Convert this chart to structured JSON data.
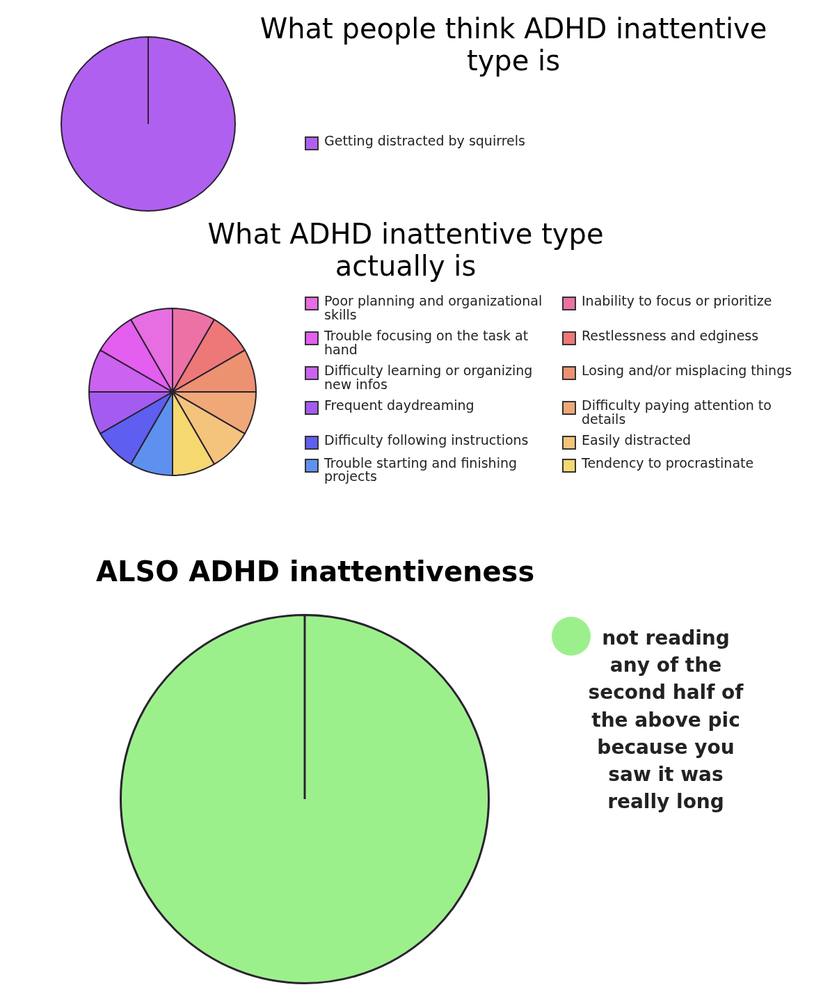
{
  "chart_data": [
    {
      "type": "pie",
      "title": "What people think ADHD inattentive type is",
      "categories": [
        "Getting distracted by squirrels"
      ],
      "values": [
        100
      ],
      "colors": [
        "#b060ee"
      ],
      "legend": "right"
    },
    {
      "type": "pie",
      "title": "What ADHD inattentive type actually is",
      "categories": [
        "Inability to focus or prioritize",
        "Restlessness and edginess",
        "Losing and/or misplacing things",
        "Difficulty paying attention to details",
        "Easily distracted",
        "Tendency to procrastinate",
        "Trouble starting and finishing projects",
        "Difficulty following instructions",
        "Frequent daydreaming",
        "Difficulty learning or organizing new infos",
        "Trouble focusing on the task at hand",
        "Poor planning and organizational skills"
      ],
      "values": [
        8.34,
        8.33,
        8.33,
        8.34,
        8.33,
        8.33,
        8.34,
        8.33,
        8.33,
        8.34,
        8.33,
        8.33
      ],
      "colors": [
        "#ec72a6",
        "#ee7878",
        "#ec9270",
        "#f0a878",
        "#f4c47c",
        "#f6d870",
        "#5e90f0",
        "#5e5ef0",
        "#a45cf0",
        "#cc62f0",
        "#e45ef0",
        "#e66ee0"
      ],
      "legend": "right"
    },
    {
      "type": "pie",
      "title": "ALSO ADHD inattentiveness",
      "categories": [
        "not reading any of the second half of the above pic because you saw it was really long"
      ],
      "values": [
        100
      ],
      "colors": [
        "#9cf08c"
      ],
      "legend": "top right"
    }
  ]
}
